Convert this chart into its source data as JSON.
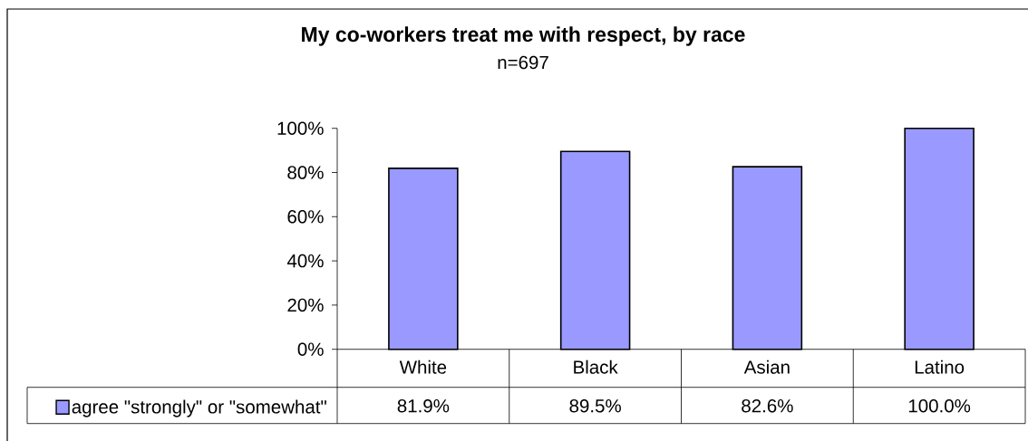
{
  "chart_data": {
    "type": "bar",
    "title": "My co-workers treat me with respect, by race",
    "subtitle": "n=697",
    "categories": [
      "White",
      "Black",
      "Asian",
      "Latino"
    ],
    "series": [
      {
        "name": "agree \"strongly\" or \"somewhat\"",
        "color": "#9999ff",
        "values": [
          81.9,
          89.5,
          82.6,
          100.0
        ],
        "value_labels": [
          "81.9%",
          "89.5%",
          "82.6%",
          "100.0%"
        ]
      }
    ],
    "ylim": [
      0,
      100
    ],
    "yticks": [
      {
        "value": 0,
        "label": "0%"
      },
      {
        "value": 20,
        "label": "20%"
      },
      {
        "value": 40,
        "label": "40%"
      },
      {
        "value": 60,
        "label": "60%"
      },
      {
        "value": 80,
        "label": "80%"
      },
      {
        "value": 100,
        "label": "100%"
      }
    ],
    "legend": "bottom left"
  }
}
